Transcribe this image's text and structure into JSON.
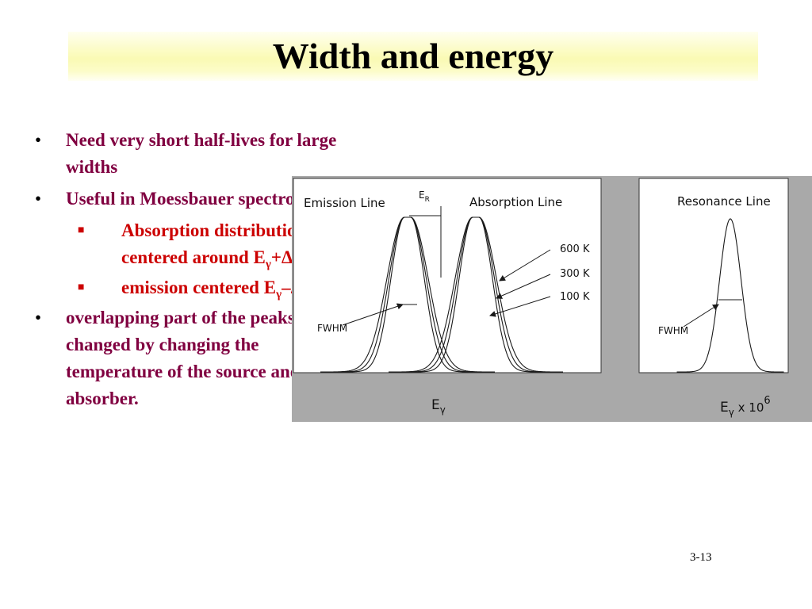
{
  "slide": {
    "title": "Width and energy",
    "page_number": "3-13"
  },
  "bullets": [
    {
      "text": "Need very short half-lives for large widths"
    },
    {
      "text": "Useful in Moessbauer spectroscopy",
      "sub": [
        {
          "prefix": "Absorption distribution is centered around E",
          "subscript": "γ",
          "suffix": "+ΔE"
        },
        {
          "prefix": "emission centered E",
          "subscript": "γ",
          "suffix": "–ΔE ."
        }
      ]
    },
    {
      "text": "overlapping part of the peaks can be changed by changing the temperature of the source and/or the absorber."
    }
  ],
  "figure": {
    "left_panel": {
      "emission_label": "Emission Line",
      "er_base": "E",
      "er_subscript": "R",
      "absorption_label": "Absorption Line",
      "temperatures": [
        "600 K",
        "300 K",
        "100 K"
      ],
      "fwhm_label": "FWHM",
      "xaxis_base": "E",
      "xaxis_subscript": "γ"
    },
    "right_panel": {
      "title": "Resonance Line",
      "fwhm_label": "FWHM",
      "xaxis_base": "E",
      "xaxis_subscript": "γ",
      "xaxis_suffix": " x 10",
      "xaxis_exponent": "6"
    },
    "colors": {
      "panel_bg": "#ffffff",
      "figure_bg": "#a9a9a9",
      "curve": "#1a1a1a"
    }
  },
  "colors": {
    "title_bg": "#fafab4",
    "bullet_text": "#800040",
    "sub_bullet_text": "#cc0000"
  }
}
